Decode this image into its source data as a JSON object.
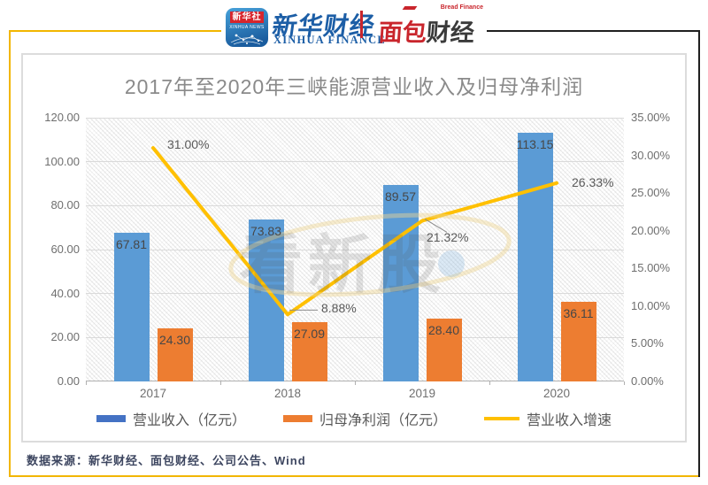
{
  "header": {
    "xinhua_app": {
      "title": "新华社",
      "subtitle": "XINHUA NEWS"
    },
    "xinhua_finance": {
      "name": "新华财经",
      "subtitle": "XINHUA FINANCE"
    },
    "bread_finance": {
      "name_red": "面包",
      "name_dark": "财经",
      "subtitle": "Bread Finance"
    }
  },
  "chart": {
    "title": "2017年至2020年三峡能源营业收入及归母净利润"
  },
  "chart_data": {
    "type": "bar",
    "title": "2017年至2020年三峡能源营业收入及归母净利润",
    "categories": [
      "2017",
      "2018",
      "2019",
      "2020"
    ],
    "series": [
      {
        "name": "营业收入（亿元）",
        "type": "bar",
        "axis": "left",
        "color": "#5B9BD5",
        "values": [
          67.81,
          73.83,
          89.57,
          113.15
        ],
        "labels": [
          "67.81",
          "73.83",
          "89.57",
          "113.15"
        ]
      },
      {
        "name": "归母净利润（亿元）",
        "type": "bar",
        "axis": "left",
        "color": "#ED7D31",
        "values": [
          24.3,
          27.09,
          28.4,
          36.11
        ],
        "labels": [
          "24.30",
          "27.09",
          "28.40",
          "36.11"
        ]
      },
      {
        "name": "营业收入增速",
        "type": "line",
        "axis": "right",
        "color": "#FFC000",
        "values": [
          31.0,
          8.88,
          21.32,
          26.33
        ],
        "labels": [
          "31.00%",
          "8.88%",
          "21.32%",
          "26.33%"
        ]
      }
    ],
    "left_axis": {
      "min": 0,
      "max": 120,
      "step": 20,
      "ticks": [
        "120.00",
        "100.00",
        "80.00",
        "60.00",
        "40.00",
        "20.00",
        "0.00"
      ]
    },
    "right_axis": {
      "min": 0,
      "max": 35,
      "step": 5,
      "ticks": [
        "35.00%",
        "30.00%",
        "25.00%",
        "20.00%",
        "15.00%",
        "10.00%",
        "5.00%",
        "0.00%"
      ]
    },
    "grid": true,
    "legend_position": "bottom",
    "plot_background": "diagonal-hatch"
  },
  "legend": {
    "items": [
      {
        "label": "营业收入（亿元）",
        "color": "#4472C4",
        "shape": "rect"
      },
      {
        "label": "归母净利润（亿元）",
        "color": "#ED7D31",
        "shape": "rect"
      },
      {
        "label": "营业收入增速",
        "color": "#FFC000",
        "shape": "line"
      }
    ]
  },
  "watermark": {
    "text": "看新股"
  },
  "footer": {
    "source": "数据来源：新华财经、面包财经、公司公告、Wind"
  },
  "colors": {
    "bar_blue": "#5B9BD5",
    "bar_orange": "#ED7D31",
    "line_yellow": "#FFC000",
    "frame_yellow": "#F2B600",
    "frame_dark": "#1F1F1F",
    "brand_blue": "#1C5EA6",
    "brand_red": "#C9252C",
    "title_gray": "#8A8A8A"
  }
}
